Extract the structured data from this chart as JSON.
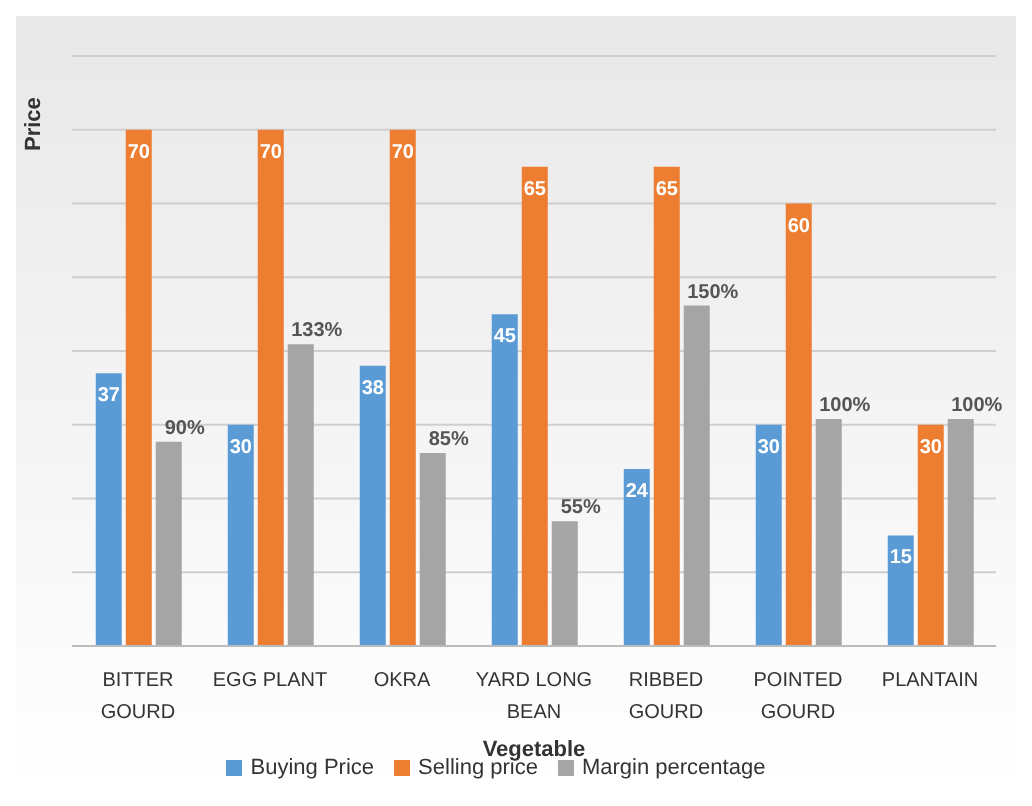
{
  "chart_data": {
    "type": "bar",
    "xlabel": "Vegetable",
    "ylabel": "Price",
    "categories": [
      "BITTER GOURD",
      "EGG PLANT",
      "OKRA",
      "YARD LONG BEAN",
      "RIBBED GOURD",
      "POINTED GOURD",
      "PLANTAIN"
    ],
    "series": [
      {
        "name": "Buying Price",
        "color": "#5b9bd5",
        "values": [
          37,
          30,
          38,
          45,
          24,
          30,
          15
        ],
        "value_labels": [
          "37",
          "30",
          "38",
          "45",
          "24",
          "30",
          "15"
        ]
      },
      {
        "name": "Selling price",
        "color": "#ed7d31",
        "values": [
          70,
          70,
          70,
          65,
          65,
          60,
          30
        ],
        "value_labels": [
          "70",
          "70",
          "70",
          "65",
          "65",
          "60",
          "30"
        ]
      },
      {
        "name": "Margin percentage",
        "color": "#a5a5a5",
        "axis": "y2",
        "values": [
          90,
          133,
          85,
          55,
          150,
          100,
          100
        ],
        "value_labels": [
          "90%",
          "133%",
          "85%",
          "55%",
          "150%",
          "100%",
          "100%"
        ]
      }
    ],
    "ylim": [
      0,
      80
    ],
    "y2lim": [
      0,
      260
    ],
    "tick_labels": "x",
    "grid": "y",
    "legend": "bottom"
  }
}
